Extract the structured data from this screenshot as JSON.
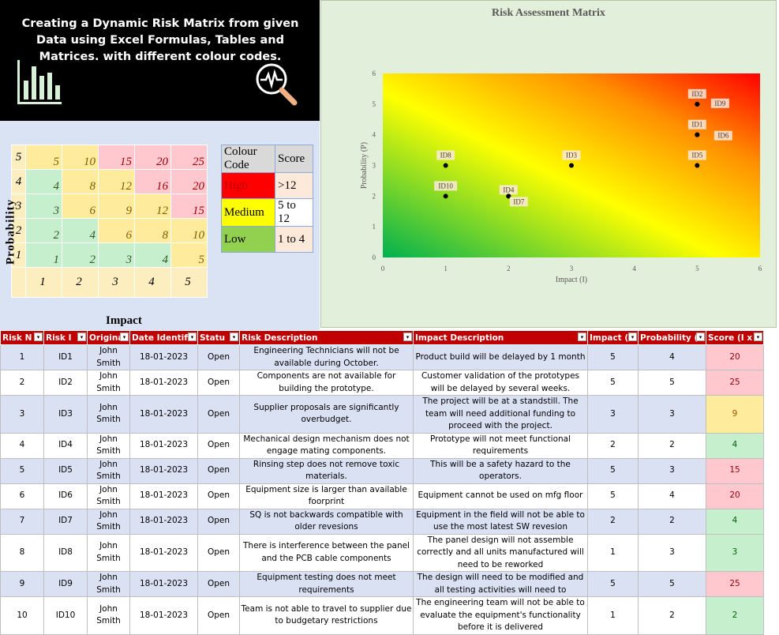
{
  "banner": {
    "title": "Creating a Dynamic Risk Matrix from given Data using Excel Formulas, Tables and Matrices. with different colour codes.",
    "icons": [
      "bar-chart-icon",
      "search-pulse-icon"
    ]
  },
  "matrix": {
    "prob_label": "Probability",
    "impact_label": "Impact",
    "rows": [
      {
        "p": "5",
        "cells": [
          {
            "v": "5",
            "lvl": "med"
          },
          {
            "v": "10",
            "lvl": "med"
          },
          {
            "v": "15",
            "lvl": "high"
          },
          {
            "v": "20",
            "lvl": "high"
          },
          {
            "v": "25",
            "lvl": "high"
          }
        ]
      },
      {
        "p": "4",
        "cells": [
          {
            "v": "4",
            "lvl": "low"
          },
          {
            "v": "8",
            "lvl": "med"
          },
          {
            "v": "12",
            "lvl": "med"
          },
          {
            "v": "16",
            "lvl": "high"
          },
          {
            "v": "20",
            "lvl": "high"
          }
        ]
      },
      {
        "p": "3",
        "cells": [
          {
            "v": "3",
            "lvl": "low"
          },
          {
            "v": "6",
            "lvl": "med"
          },
          {
            "v": "9",
            "lvl": "med"
          },
          {
            "v": "12",
            "lvl": "med"
          },
          {
            "v": "15",
            "lvl": "high"
          }
        ]
      },
      {
        "p": "2",
        "cells": [
          {
            "v": "2",
            "lvl": "low"
          },
          {
            "v": "4",
            "lvl": "low"
          },
          {
            "v": "6",
            "lvl": "med"
          },
          {
            "v": "8",
            "lvl": "med"
          },
          {
            "v": "10",
            "lvl": "med"
          }
        ]
      },
      {
        "p": "1",
        "cells": [
          {
            "v": "1",
            "lvl": "low"
          },
          {
            "v": "2",
            "lvl": "low"
          },
          {
            "v": "3",
            "lvl": "low"
          },
          {
            "v": "4",
            "lvl": "low"
          },
          {
            "v": "5",
            "lvl": "med"
          }
        ]
      }
    ],
    "impact_ticks": [
      "1",
      "2",
      "3",
      "4",
      "5"
    ]
  },
  "legend": {
    "header": [
      "Colour Code",
      "Score"
    ],
    "rows": [
      {
        "label": "High",
        "score": ">12",
        "color": "#ff0000",
        "text_color": "#c00000",
        "score_bg": "#fde9d9"
      },
      {
        "label": "Medium",
        "score": "5 to 12",
        "color": "#ffff00",
        "text_color": "#000000",
        "score_bg": "#ffffff"
      },
      {
        "label": "Low",
        "score": "1 to 4",
        "color": "#92d050",
        "text_color": "#000000",
        "score_bg": "#fde9d9"
      }
    ]
  },
  "chart_data": {
    "type": "scatter",
    "title": "Risk Assessment Matrix",
    "xlabel": "Impact (I)",
    "ylabel": "Probability (P)",
    "xlim": [
      0,
      6
    ],
    "ylim": [
      0,
      6
    ],
    "xticks": [
      "0",
      "1",
      "2",
      "3",
      "4",
      "5",
      "6"
    ],
    "yticks": [
      "0",
      "1",
      "2",
      "3",
      "4",
      "5",
      "6"
    ],
    "background": "gradient green-yellow-red",
    "points": [
      {
        "label": "ID1",
        "x": 5,
        "y": 4
      },
      {
        "label": "ID2",
        "x": 5,
        "y": 5
      },
      {
        "label": "ID3",
        "x": 3,
        "y": 3
      },
      {
        "label": "ID4",
        "x": 2,
        "y": 2
      },
      {
        "label": "ID5",
        "x": 5,
        "y": 3
      },
      {
        "label": "ID6",
        "x": 5,
        "y": 4
      },
      {
        "label": "ID7",
        "x": 2,
        "y": 2
      },
      {
        "label": "ID8",
        "x": 1,
        "y": 3
      },
      {
        "label": "ID9",
        "x": 5,
        "y": 5
      },
      {
        "label": "ID10",
        "x": 1,
        "y": 2
      }
    ]
  },
  "table": {
    "headers": [
      "Risk N",
      "Risk I",
      "Originat",
      "Date Identifi",
      "Statu",
      "Risk Description",
      "Impact Description",
      "Impact (",
      "Probability (I",
      "Score (I x"
    ],
    "rows": [
      {
        "no": "1",
        "id": "ID1",
        "orig": "John Smith",
        "date": "18-01-2023",
        "status": "Open",
        "risk": "Engineering Technicians will not be available during October.",
        "impact_desc": "Product build will be delayed by 1 month",
        "impact": "5",
        "prob": "4",
        "score": "20",
        "lvl": "high"
      },
      {
        "no": "2",
        "id": "ID2",
        "orig": "John Smith",
        "date": "18-01-2023",
        "status": "Open",
        "risk": "Components are not available for building the prototype.",
        "impact_desc": "Customer validation of the prototypes will be delayed by several weeks.",
        "impact": "5",
        "prob": "5",
        "score": "25",
        "lvl": "high"
      },
      {
        "no": "3",
        "id": "ID3",
        "orig": "John Smith",
        "date": "18-01-2023",
        "status": "Open",
        "risk": "Supplier proposals are significantly overbudget.",
        "impact_desc": "The project will be at a standstill. The team will need additional funding to proceed with the project.",
        "impact": "3",
        "prob": "3",
        "score": "9",
        "lvl": "med"
      },
      {
        "no": "4",
        "id": "ID4",
        "orig": "John Smith",
        "date": "18-01-2023",
        "status": "Open",
        "risk": "Mechanical design mechanism does not engage mating components.",
        "impact_desc": "Prototype will not meet functional requirements",
        "impact": "2",
        "prob": "2",
        "score": "4",
        "lvl": "low"
      },
      {
        "no": "5",
        "id": "ID5",
        "orig": "John Smith",
        "date": "18-01-2023",
        "status": "Open",
        "risk": "Rinsing step does not remove toxic materials.",
        "impact_desc": "This will be a safety hazard to the operators.",
        "impact": "5",
        "prob": "3",
        "score": "15",
        "lvl": "high"
      },
      {
        "no": "6",
        "id": "ID6",
        "orig": "John Smith",
        "date": "18-01-2023",
        "status": "Open",
        "risk": "Equipment size is larger than available foorprint",
        "impact_desc": "Equipment cannot be used on mfg floor",
        "impact": "5",
        "prob": "4",
        "score": "20",
        "lvl": "high"
      },
      {
        "no": "7",
        "id": "ID7",
        "orig": "John Smith",
        "date": "18-01-2023",
        "status": "Open",
        "risk": "SQ is not backwards compatible with older revesions",
        "impact_desc": "Equipment in the field will not be able to use the most latest SW revesion",
        "impact": "2",
        "prob": "2",
        "score": "4",
        "lvl": "low"
      },
      {
        "no": "8",
        "id": "ID8",
        "orig": "John Smith",
        "date": "18-01-2023",
        "status": "Open",
        "risk": "There is interference between the panel and the PCB cable components",
        "impact_desc": "The panel design will not assemble correctly and all units manufactured will need to be reworked",
        "impact": "1",
        "prob": "3",
        "score": "3",
        "lvl": "low"
      },
      {
        "no": "9",
        "id": "ID9",
        "orig": "John Smith",
        "date": "18-01-2023",
        "status": "Open",
        "risk": "Equipment testing does not meet requirements",
        "impact_desc": "The design will need to be modified and all testing activities will need to",
        "impact": "5",
        "prob": "5",
        "score": "25",
        "lvl": "high"
      },
      {
        "no": "10",
        "id": "ID10",
        "orig": "John Smith",
        "date": "18-01-2023",
        "status": "Open",
        "risk": "Team is not able to travel to supplier due to budgetary restrictions",
        "impact_desc": "The engineering team will not be able to evaluate the equipment's functionality before it is delivered",
        "impact": "1",
        "prob": "2",
        "score": "2",
        "lvl": "low"
      }
    ]
  }
}
